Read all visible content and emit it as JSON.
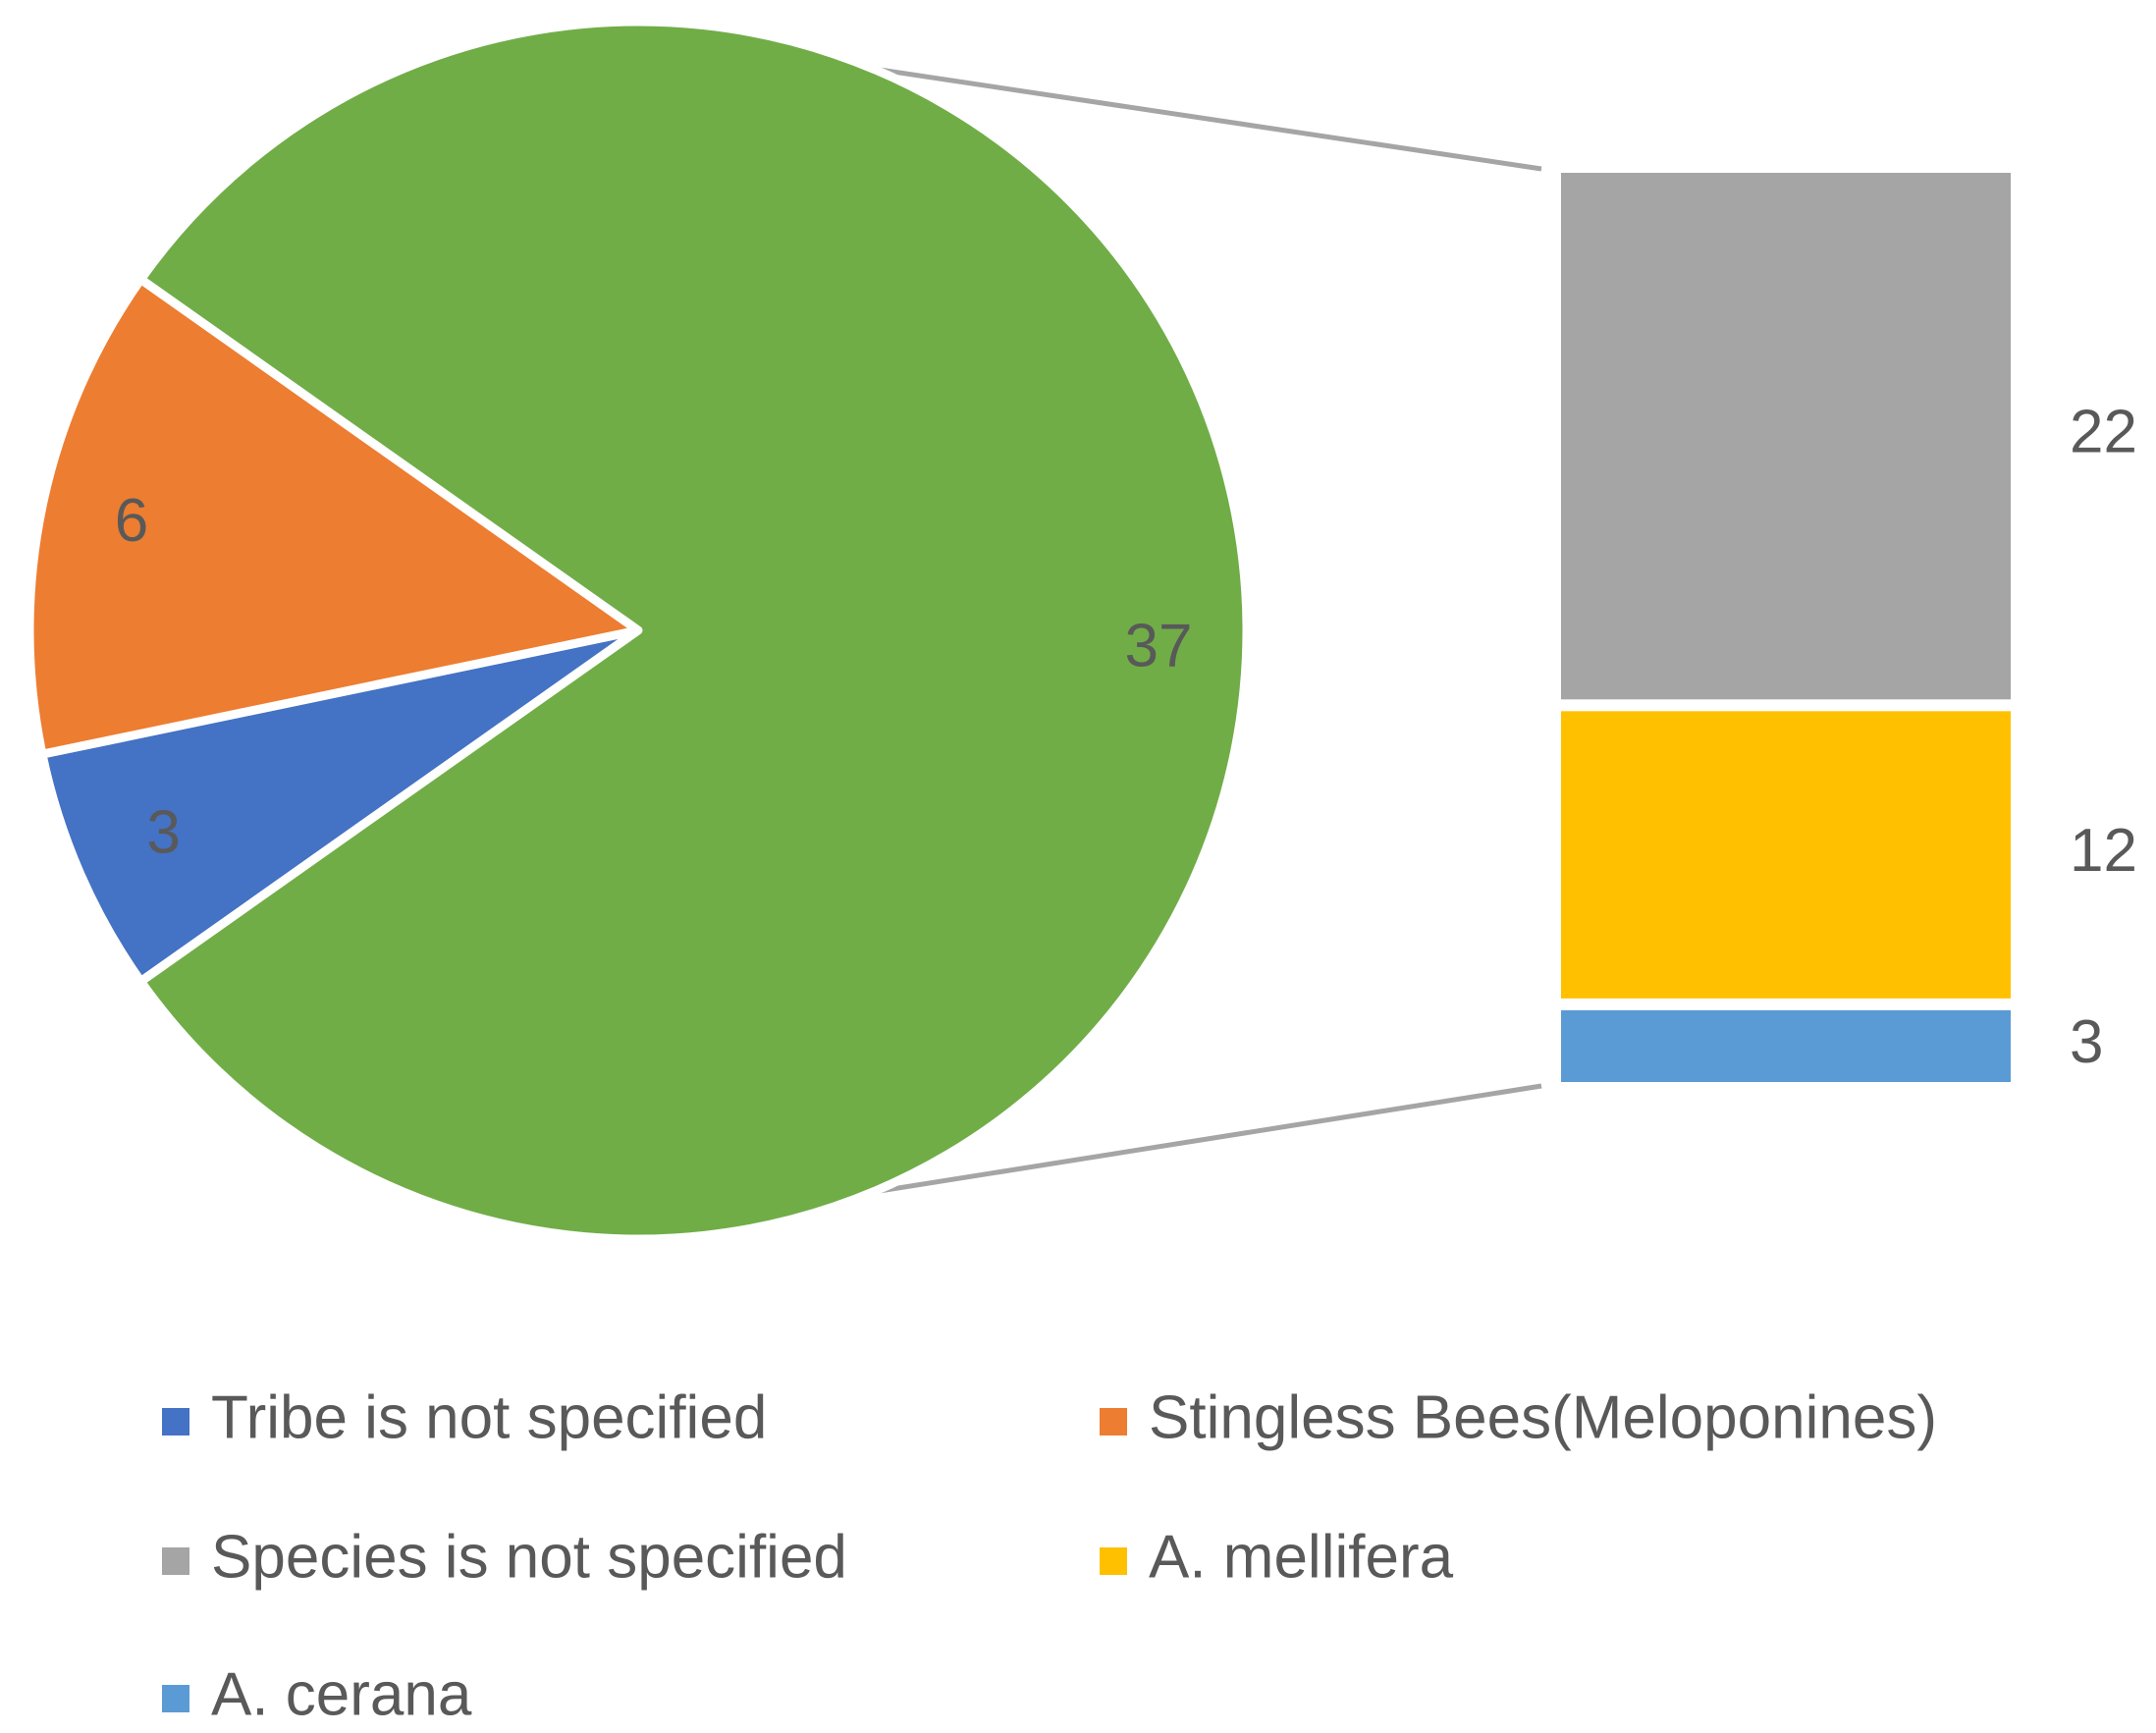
{
  "chart_data": {
    "type": "bar-of-pie",
    "pie": {
      "slices": [
        {
          "label": "Tribe is not specified",
          "value": 3,
          "color": "#4472C4"
        },
        {
          "label": "Stingless Bees(Meloponines)",
          "value": 6,
          "color": "#ED7D31"
        },
        {
          "label": "",
          "value": 37,
          "color": "#70AD47"
        }
      ]
    },
    "bar": {
      "segments": [
        {
          "label": "Species is not specified",
          "value": 22,
          "color": "#A5A5A5"
        },
        {
          "label": "A. mellifera",
          "value": 12,
          "color": "#FFC000"
        },
        {
          "label": "A. cerana",
          "value": 3,
          "color": "#5B9BD5"
        }
      ]
    },
    "connector_color": "#A5A5A5",
    "legend": {
      "placement": "bottom",
      "entries": [
        {
          "label": "Tribe is not specified",
          "color": "#4472C4"
        },
        {
          "label": "Stingless Bees(Meloponines)",
          "color": "#ED7D31"
        },
        {
          "label": "Species is not specified",
          "color": "#A5A5A5"
        },
        {
          "label": "A. mellifera",
          "color": "#FFC000"
        },
        {
          "label": "A. cerana",
          "color": "#5B9BD5"
        }
      ]
    }
  }
}
